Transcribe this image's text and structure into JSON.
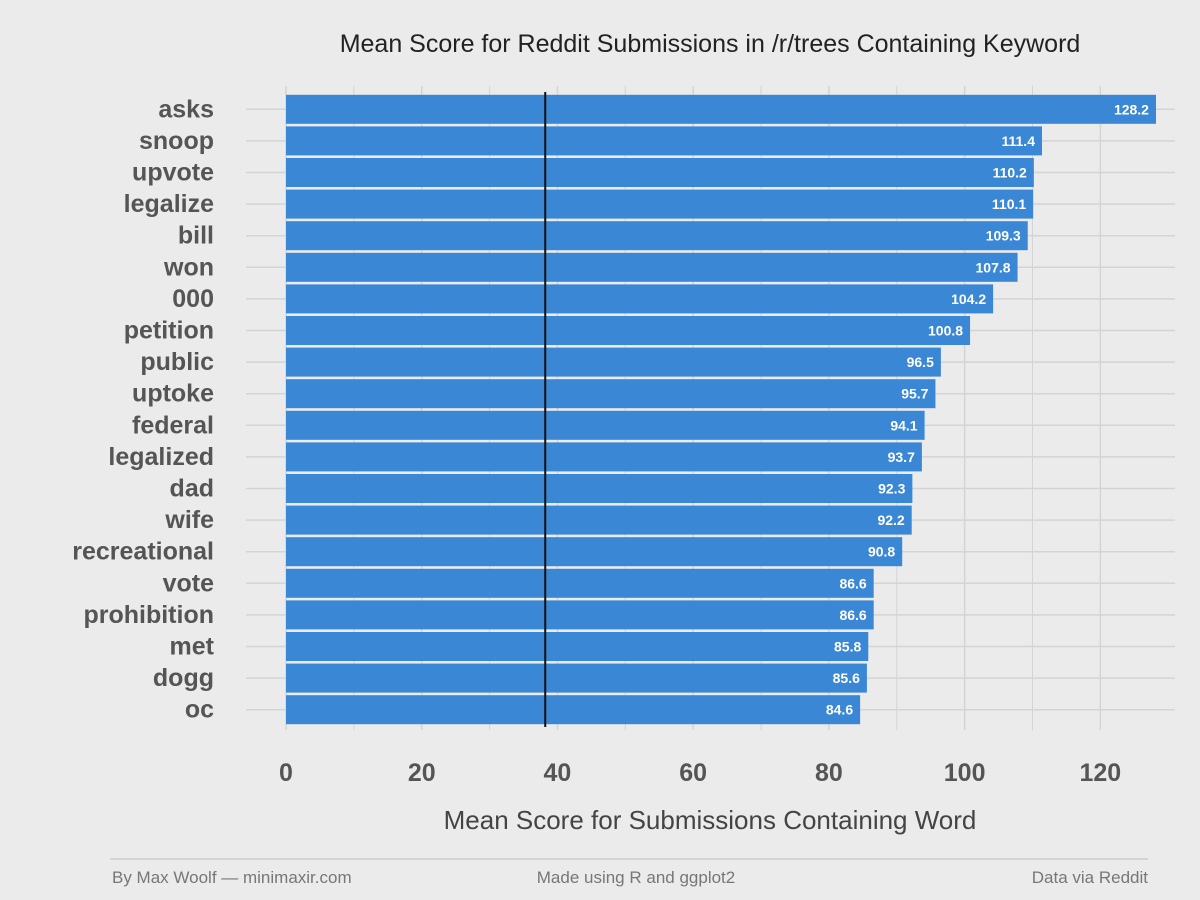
{
  "chart_data": {
    "type": "bar",
    "orientation": "horizontal",
    "title": "Mean Score for Reddit Submissions in /r/trees Containing Keyword",
    "xlabel": "Mean Score for Submissions Containing Word",
    "ylabel": "",
    "categories": [
      "asks",
      "snoop",
      "upvote",
      "legalize",
      "bill",
      "won",
      "000",
      "petition",
      "public",
      "uptoke",
      "federal",
      "legalized",
      "dad",
      "wife",
      "recreational",
      "vote",
      "prohibition",
      "met",
      "dogg",
      "oc"
    ],
    "values": [
      128.2,
      111.4,
      110.2,
      110.1,
      109.3,
      107.8,
      104.2,
      100.8,
      96.5,
      95.7,
      94.1,
      93.7,
      92.3,
      92.2,
      90.8,
      86.6,
      86.6,
      85.8,
      85.6,
      84.6
    ],
    "value_labels": [
      "128.2",
      "111.4",
      "110.2",
      "110.1",
      "109.3",
      "107.8",
      "104.2",
      "100.8",
      "96.5",
      "95.7",
      "94.1",
      "93.7",
      "92.3",
      "92.2",
      "90.8",
      "86.6",
      "86.6",
      "85.8",
      "85.6",
      "84.6"
    ],
    "xlim": [
      0,
      131
    ],
    "xticks": [
      0,
      20,
      40,
      60,
      80,
      100,
      120
    ],
    "xtick_labels": [
      "0",
      "20",
      "40",
      "60",
      "80",
      "100",
      "120"
    ],
    "reference_line": 38.2,
    "grid": true,
    "bar_color": "#3a87d6",
    "reference_line_color": "#111111"
  },
  "footer": {
    "left": "By Max Woolf — minimaxir.com",
    "center": "Made using R and ggplot2",
    "right": "Data via Reddit"
  },
  "colors": {
    "background": "#ebebeb",
    "grid": "#d4d4d4",
    "footer_rule": "#bbbbbb"
  }
}
